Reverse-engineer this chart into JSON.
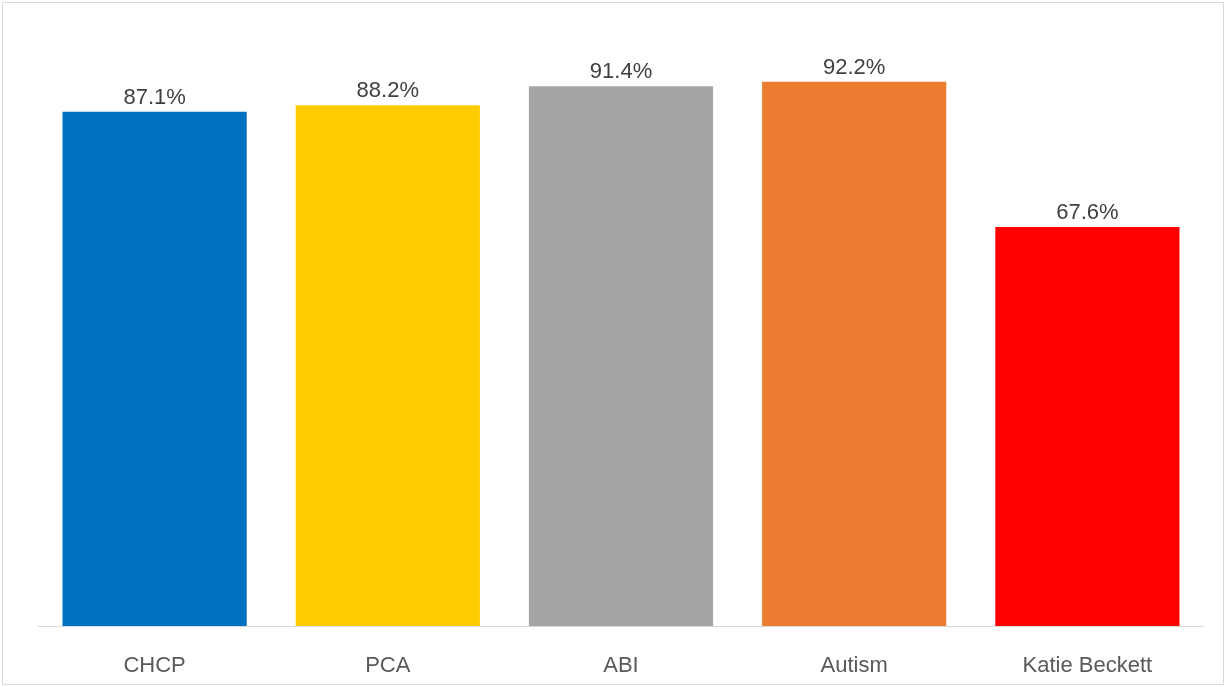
{
  "chart_data": {
    "type": "bar",
    "categories": [
      "CHCP",
      "PCA",
      "ABI",
      "Autism",
      "Katie Beckett"
    ],
    "values": [
      87.1,
      88.2,
      91.4,
      92.2,
      67.6
    ],
    "colors": [
      "#0070c0",
      "#ffcc00",
      "#a5a5a5",
      "#ed7d31",
      "#ff0000"
    ],
    "value_labels": [
      "87.1%",
      "88.2%",
      "91.4%",
      "92.2%",
      "67.6%"
    ],
    "tick_labels": "x"
  }
}
